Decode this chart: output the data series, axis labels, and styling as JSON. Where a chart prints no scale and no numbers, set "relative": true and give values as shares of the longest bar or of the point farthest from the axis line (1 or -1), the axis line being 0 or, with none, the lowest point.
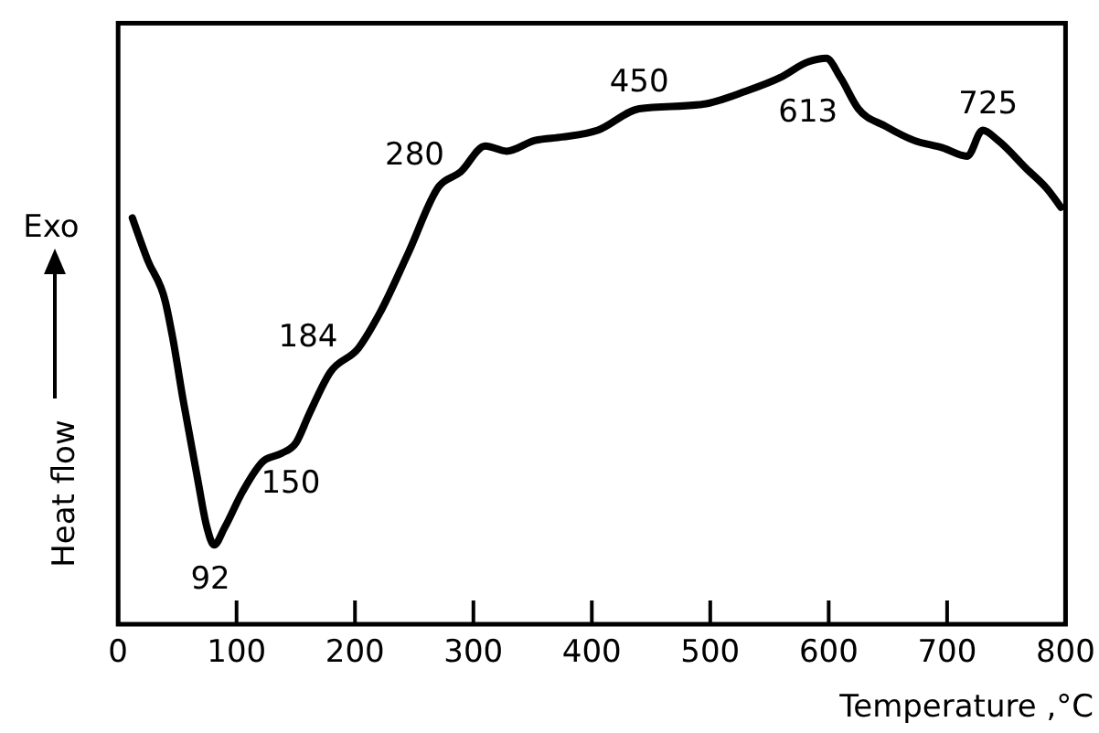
{
  "chart_data": {
    "type": "line",
    "relative": true,
    "xlabel": "Temperature ,°C",
    "ylabel": "Heat flow",
    "xlim": [
      0,
      800
    ],
    "xticks": [
      0,
      100,
      200,
      300,
      400,
      500,
      600,
      700,
      800
    ],
    "grid": false,
    "marker": "none",
    "line_style": "solid",
    "x": [
      12,
      25,
      40,
      46,
      55,
      67,
      75,
      81,
      90,
      105,
      123,
      138,
      150,
      161,
      179,
      203,
      221,
      245,
      271,
      289,
      310,
      328,
      352,
      375,
      405,
      440,
      494,
      530,
      559,
      583,
      598,
      610,
      625,
      648,
      672,
      696,
      717,
      730,
      743,
      767,
      785,
      796
    ],
    "series": [
      {
        "color": "#000000",
        "values": [
          0.718,
          0.643,
          0.569,
          0.507,
          0.395,
          0.258,
          0.171,
          0.14,
          0.171,
          0.234,
          0.289,
          0.302,
          0.32,
          0.37,
          0.445,
          0.488,
          0.55,
          0.656,
          0.774,
          0.799,
          0.845,
          0.836,
          0.855,
          0.861,
          0.873,
          0.911,
          0.919,
          0.942,
          0.966,
          0.994,
          1,
          0.966,
          0.911,
          0.88,
          0.855,
          0.842,
          0.827,
          0.873,
          0.855,
          0.805,
          0.768,
          0.737
        ]
      }
    ],
    "annotations": [
      "Exo",
      {
        "text": "92",
        "x": 81,
        "y": 0.14
      },
      {
        "text": "150",
        "x": 138,
        "y": 0.302
      },
      {
        "text": "184",
        "x": 179,
        "y": 0.445
      },
      {
        "text": "280",
        "x": 289,
        "y": 0.799
      },
      {
        "text": "450",
        "x": 440,
        "y": 0.911
      },
      {
        "text": "613",
        "x": 598,
        "y": 1
      },
      {
        "text": "725",
        "x": 730,
        "y": 0.873
      }
    ]
  }
}
